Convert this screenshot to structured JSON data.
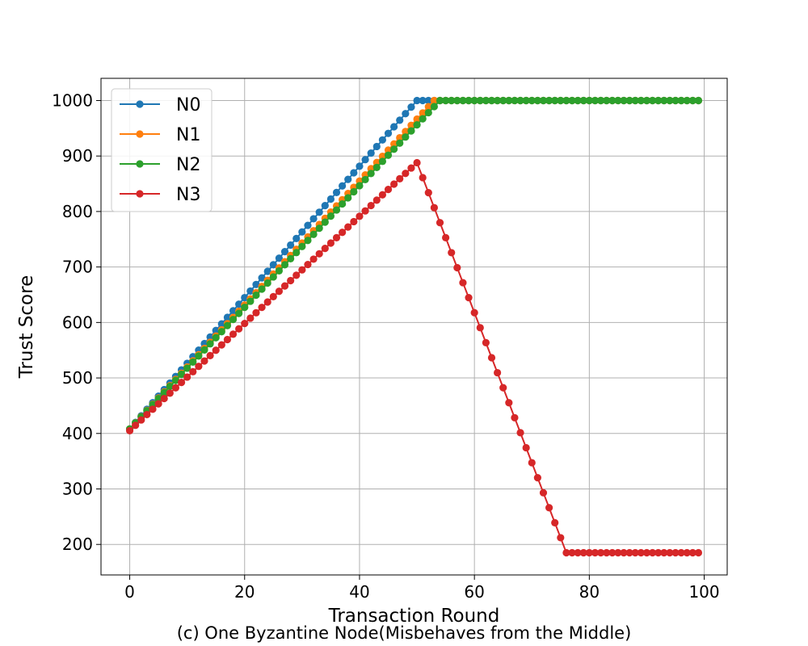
{
  "caption": "(c) One Byzantine Node(Misbehaves from the Middle)",
  "chart_data": {
    "type": "line",
    "xlabel": "Transaction Round",
    "ylabel": "Trust Score",
    "xlim": [
      -5,
      104
    ],
    "ylim": [
      145,
      1040
    ],
    "xticks": [
      0,
      20,
      40,
      60,
      80,
      100
    ],
    "yticks": [
      200,
      300,
      400,
      500,
      600,
      700,
      800,
      900,
      1000
    ],
    "grid": true,
    "legend_position": "top-left",
    "series": [
      {
        "name": "N0",
        "color": "#1f77b4",
        "marker": "circle",
        "points": [
          [
            0,
            408
          ],
          [
            50,
            1000
          ],
          [
            99,
            1000
          ]
        ]
      },
      {
        "name": "N1",
        "color": "#ff7f0e",
        "marker": "circle",
        "points": [
          [
            0,
            408
          ],
          [
            53,
            1000
          ],
          [
            99,
            1000
          ]
        ]
      },
      {
        "name": "N2",
        "color": "#2ca02c",
        "marker": "circle",
        "points": [
          [
            0,
            408
          ],
          [
            54,
            1000
          ],
          [
            99,
            1000
          ]
        ]
      },
      {
        "name": "N3",
        "color": "#d62728",
        "marker": "circle",
        "points": [
          [
            0,
            405
          ],
          [
            50,
            888
          ],
          [
            76,
            185
          ],
          [
            99,
            185
          ]
        ]
      }
    ]
  }
}
